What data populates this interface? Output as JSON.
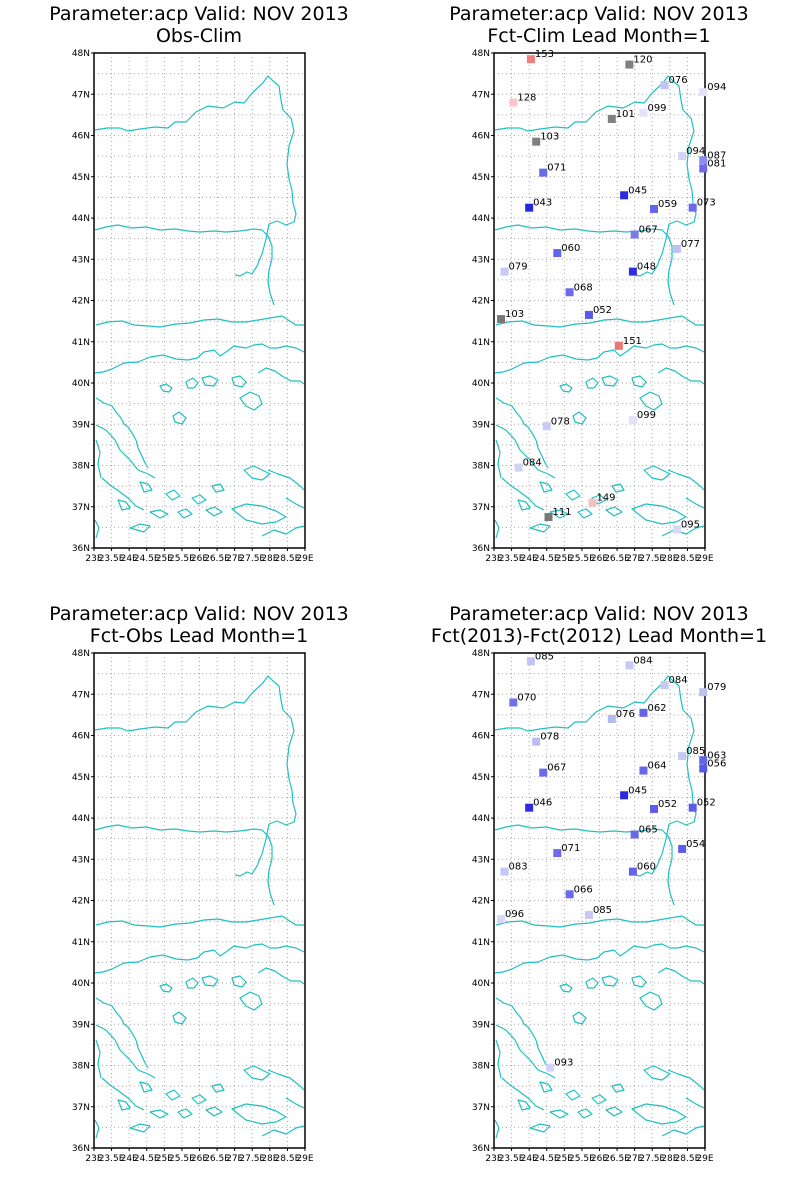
{
  "panels": [
    {
      "title_line1": "Parameter:acp Valid: NOV 2013",
      "title_line2": "Obs-Clim",
      "stations": []
    },
    {
      "title_line1": "Parameter:acp Valid: NOV 2013",
      "title_line2": "Fct-Clim Lead Month=1",
      "stations": [
        {
          "lon": 24.05,
          "lat": 47.85,
          "label": "153",
          "color": "#f07f7f"
        },
        {
          "lon": 26.85,
          "lat": 47.72,
          "label": "120",
          "color": "#808080"
        },
        {
          "lon": 27.85,
          "lat": 47.22,
          "label": "076",
          "color": "#c2c2f4"
        },
        {
          "lon": 28.95,
          "lat": 47.05,
          "label": "094",
          "color": "#e2e2f8"
        },
        {
          "lon": 23.55,
          "lat": 46.8,
          "label": "128",
          "color": "#f8c8c8"
        },
        {
          "lon": 26.35,
          "lat": 46.4,
          "label": "101",
          "color": "#808080"
        },
        {
          "lon": 27.25,
          "lat": 46.55,
          "label": "099",
          "color": "#e4e4f8"
        },
        {
          "lon": 24.2,
          "lat": 45.85,
          "label": "103",
          "color": "#808080"
        },
        {
          "lon": 28.35,
          "lat": 45.5,
          "label": "094",
          "color": "#d4d4f6"
        },
        {
          "lon": 28.95,
          "lat": 45.4,
          "label": "087",
          "color": "#8c8cf0"
        },
        {
          "lon": 28.95,
          "lat": 45.2,
          "label": "081",
          "color": "#6b6bea"
        },
        {
          "lon": 24.4,
          "lat": 45.1,
          "label": "071",
          "color": "#6868ea"
        },
        {
          "lon": 26.7,
          "lat": 44.55,
          "label": "045",
          "color": "#2a2ae2"
        },
        {
          "lon": 27.55,
          "lat": 44.22,
          "label": "059",
          "color": "#6565ea"
        },
        {
          "lon": 28.65,
          "lat": 44.25,
          "label": "073",
          "color": "#6a6aea"
        },
        {
          "lon": 24.0,
          "lat": 44.25,
          "label": "043",
          "color": "#2626e0"
        },
        {
          "lon": 27.0,
          "lat": 43.6,
          "label": "067",
          "color": "#7b7bed"
        },
        {
          "lon": 28.2,
          "lat": 43.25,
          "label": "077",
          "color": "#c0c0f2"
        },
        {
          "lon": 24.8,
          "lat": 43.15,
          "label": "060",
          "color": "#6262ea"
        },
        {
          "lon": 23.3,
          "lat": 42.7,
          "label": "079",
          "color": "#c8c8f4"
        },
        {
          "lon": 26.95,
          "lat": 42.7,
          "label": "048",
          "color": "#2f2fe2"
        },
        {
          "lon": 25.15,
          "lat": 42.2,
          "label": "068",
          "color": "#6c6ceb"
        },
        {
          "lon": 25.7,
          "lat": 41.65,
          "label": "052",
          "color": "#5a5ae8"
        },
        {
          "lon": 23.2,
          "lat": 41.55,
          "label": "103",
          "color": "#777777"
        },
        {
          "lon": 26.55,
          "lat": 40.9,
          "label": "151",
          "color": "#f07474"
        },
        {
          "lon": 26.95,
          "lat": 39.1,
          "label": "099",
          "color": "#e2e2f8"
        },
        {
          "lon": 24.5,
          "lat": 38.95,
          "label": "078",
          "color": "#cacaf4"
        },
        {
          "lon": 23.7,
          "lat": 37.95,
          "label": "084",
          "color": "#d2d2f6"
        },
        {
          "lon": 25.8,
          "lat": 37.1,
          "label": "149",
          "color": "#f6c0c0"
        },
        {
          "lon": 24.55,
          "lat": 36.75,
          "label": "111",
          "color": "#777777"
        },
        {
          "lon": 28.2,
          "lat": 36.45,
          "label": "095",
          "color": "#d8d8f6"
        }
      ]
    },
    {
      "title_line1": "Parameter:acp Valid: NOV 2013",
      "title_line2": "Fct-Obs Lead Month=1",
      "stations": []
    },
    {
      "title_line1": "Parameter:acp Valid: NOV 2013",
      "title_line2": "Fct(2013)-Fct(2012) Lead Month=1",
      "stations": [
        {
          "lon": 24.05,
          "lat": 47.8,
          "label": "085",
          "color": "#c4c4f4"
        },
        {
          "lon": 26.85,
          "lat": 47.7,
          "label": "084",
          "color": "#c8c8f4"
        },
        {
          "lon": 27.85,
          "lat": 47.22,
          "label": "084",
          "color": "#c8c8f4"
        },
        {
          "lon": 28.95,
          "lat": 47.05,
          "label": "079",
          "color": "#c0c0f2"
        },
        {
          "lon": 23.55,
          "lat": 46.8,
          "label": "070",
          "color": "#7070ec"
        },
        {
          "lon": 26.35,
          "lat": 46.4,
          "label": "076",
          "color": "#b8b8f2"
        },
        {
          "lon": 27.25,
          "lat": 46.55,
          "label": "062",
          "color": "#6464ea"
        },
        {
          "lon": 24.2,
          "lat": 45.85,
          "label": "078",
          "color": "#bcbcf2"
        },
        {
          "lon": 28.35,
          "lat": 45.5,
          "label": "085",
          "color": "#c8c8f4"
        },
        {
          "lon": 28.95,
          "lat": 45.4,
          "label": "063",
          "color": "#6464ea"
        },
        {
          "lon": 28.95,
          "lat": 45.2,
          "label": "056",
          "color": "#5858e8"
        },
        {
          "lon": 24.4,
          "lat": 45.1,
          "label": "067",
          "color": "#6a6aea"
        },
        {
          "lon": 26.7,
          "lat": 44.55,
          "label": "045",
          "color": "#2a2ae2"
        },
        {
          "lon": 27.25,
          "lat": 45.15,
          "label": "064",
          "color": "#6666ea"
        },
        {
          "lon": 27.55,
          "lat": 44.22,
          "label": "052",
          "color": "#5c5ce8"
        },
        {
          "lon": 28.65,
          "lat": 44.25,
          "label": "052",
          "color": "#5c5ce8"
        },
        {
          "lon": 24.0,
          "lat": 44.25,
          "label": "046",
          "color": "#2c2ce2"
        },
        {
          "lon": 27.0,
          "lat": 43.6,
          "label": "065",
          "color": "#6868ea"
        },
        {
          "lon": 28.35,
          "lat": 43.25,
          "label": "054",
          "color": "#5c5ce8"
        },
        {
          "lon": 24.8,
          "lat": 43.15,
          "label": "071",
          "color": "#6c6ceb"
        },
        {
          "lon": 23.3,
          "lat": 42.7,
          "label": "083",
          "color": "#c6c6f4"
        },
        {
          "lon": 26.95,
          "lat": 42.7,
          "label": "060",
          "color": "#6262ea"
        },
        {
          "lon": 25.15,
          "lat": 42.15,
          "label": "066",
          "color": "#6a6aea"
        },
        {
          "lon": 25.7,
          "lat": 41.65,
          "label": "085",
          "color": "#c8c8f4"
        },
        {
          "lon": 23.2,
          "lat": 41.55,
          "label": "096",
          "color": "#d8d8f6"
        },
        {
          "lon": 24.6,
          "lat": 37.95,
          "label": "093",
          "color": "#d4d4f6"
        }
      ]
    }
  ],
  "axes": {
    "lat_ticks": [
      "36N",
      "37N",
      "38N",
      "39N",
      "40N",
      "41N",
      "42N",
      "43N",
      "44N",
      "45N",
      "46N",
      "47N",
      "48N"
    ],
    "lon_ticks": [
      "23E",
      "23.5E",
      "24E",
      "24.5E",
      "25E",
      "25.5E",
      "26E",
      "26.5E",
      "27E",
      "27.5E",
      "28E",
      "28.5E",
      "29E"
    ],
    "lat_range": [
      36,
      48
    ],
    "lon_range": [
      23,
      29
    ]
  },
  "colors": {
    "coast": "#20c0c0",
    "grid": "#a8a8a8",
    "frame": "#000000"
  }
}
